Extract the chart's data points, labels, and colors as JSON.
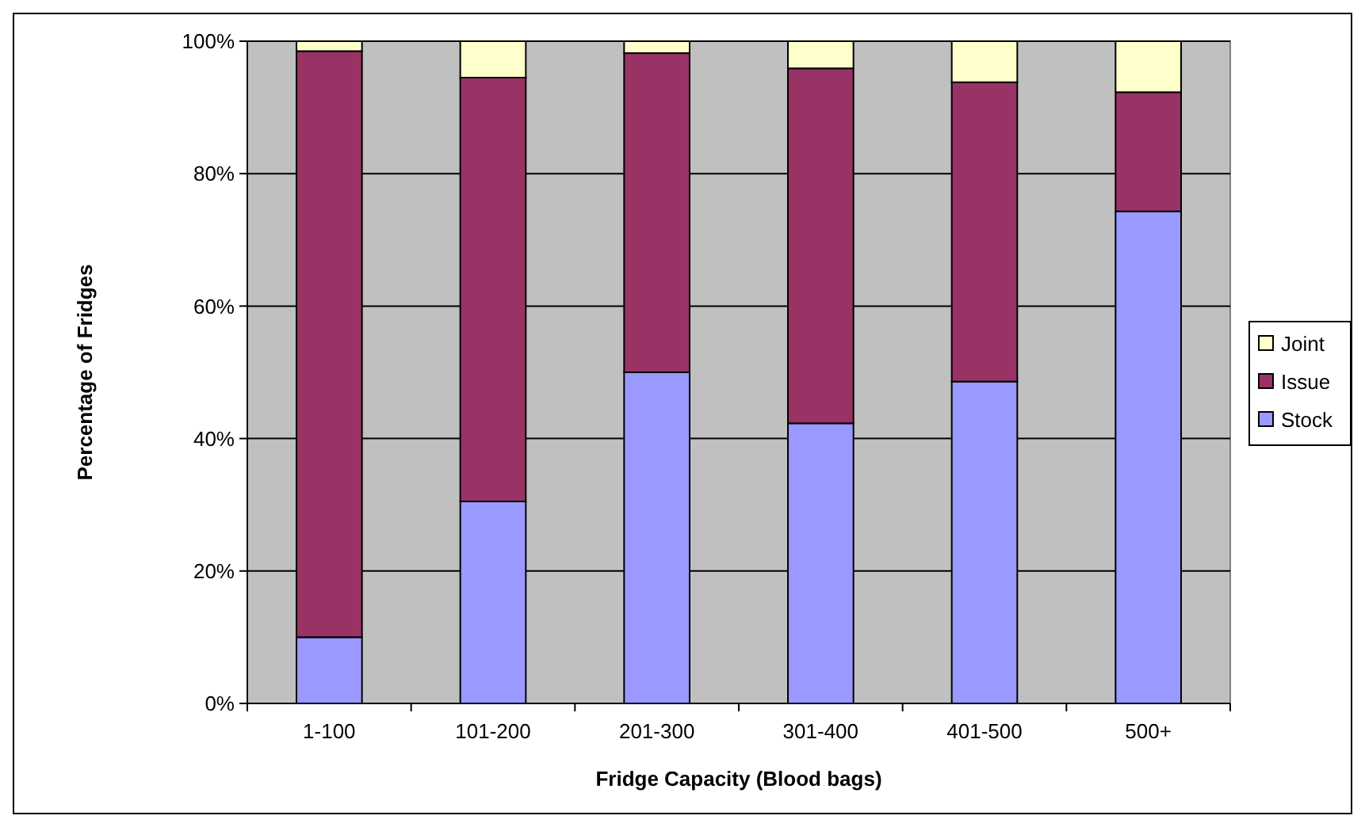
{
  "chart_data": {
    "type": "bar",
    "stacked": true,
    "xlabel": "Fridge Capacity (Blood bags)",
    "ylabel": "Percentage of Fridges",
    "categories": [
      "1-100",
      "101-200",
      "201-300",
      "301-400",
      "401-500",
      "500+"
    ],
    "series": [
      {
        "name": "Stock",
        "color": "#9999ff",
        "values": [
          10,
          30.5,
          50,
          42.3,
          48.6,
          74.3
        ]
      },
      {
        "name": "Issue",
        "color": "#993366",
        "values": [
          88.5,
          64,
          48.2,
          53.6,
          45.2,
          18
        ]
      },
      {
        "name": "Joint",
        "color": "#ffffcc",
        "values": [
          1.5,
          5.5,
          1.8,
          4.1,
          6.2,
          7.7
        ]
      }
    ],
    "ylim": [
      0,
      100
    ],
    "yticks": [
      {
        "value": 0,
        "label": "0%"
      },
      {
        "value": 20,
        "label": "20%"
      },
      {
        "value": 40,
        "label": "40%"
      },
      {
        "value": 60,
        "label": "60%"
      },
      {
        "value": 80,
        "label": "80%"
      },
      {
        "value": 100,
        "label": "100%"
      }
    ],
    "grid": "y",
    "legend": "right"
  }
}
